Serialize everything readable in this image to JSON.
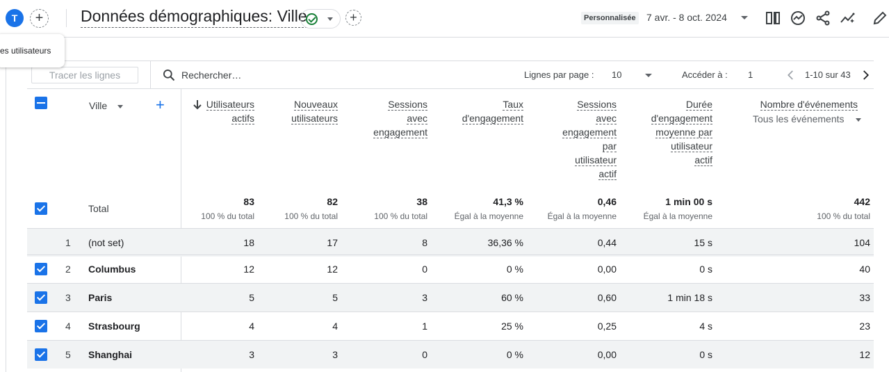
{
  "header": {
    "avatar_letter": "T",
    "title": "Données démographiques: Ville",
    "date_label": "Personnalisée",
    "date_range": "7 avr. - 8 oct. 2024"
  },
  "tooltip": {
    "text": "es utilisateurs"
  },
  "toolbar": {
    "plot_rows": "Tracer les lignes",
    "search_placeholder": "Rechercher…",
    "rows_per_page_label": "Lignes par page :",
    "rows_per_page_value": "10",
    "goto_label": "Accéder à :",
    "goto_value": "1",
    "pagination": "1-10 sur 43"
  },
  "table": {
    "dimension_header": "Ville",
    "columns": [
      {
        "key": "active_users",
        "lines": [
          "Utilisateurs",
          "actifs"
        ],
        "sorted": true
      },
      {
        "key": "new_users",
        "lines": [
          "Nouveaux",
          "utilisateurs"
        ]
      },
      {
        "key": "engaged_sessions",
        "lines": [
          "Sessions",
          "avec",
          "engagement"
        ]
      },
      {
        "key": "engagement_rate",
        "lines": [
          "Taux",
          "d'engagement"
        ]
      },
      {
        "key": "engaged_per_user",
        "lines": [
          "Sessions",
          "avec",
          "engagement",
          "par",
          "utilisateur",
          "actif"
        ]
      },
      {
        "key": "avg_engagement",
        "lines": [
          "Durée",
          "d'engagement",
          "moyenne par",
          "utilisateur",
          "actif"
        ]
      },
      {
        "key": "event_count",
        "lines": [
          "Nombre d'événements"
        ],
        "sub": "Tous les événements"
      }
    ],
    "total": {
      "label": "Total",
      "values": [
        "83",
        "82",
        "38",
        "41,3 %",
        "0,46",
        "1 min 00 s",
        "442"
      ],
      "subs": [
        "100 % du total",
        "100 % du total",
        "100 % du total",
        "Égal à la moyenne",
        "Égal à la moyenne",
        "Égal à la moyenne",
        "100 % du total"
      ]
    },
    "rows": [
      {
        "index": "1",
        "city": "(not set)",
        "checked": false,
        "values": [
          "18",
          "17",
          "8",
          "36,36 %",
          "0,44",
          "15 s",
          "104"
        ]
      },
      {
        "index": "2",
        "city": "Columbus",
        "checked": true,
        "values": [
          "12",
          "12",
          "0",
          "0 %",
          "0,00",
          "0 s",
          "40"
        ]
      },
      {
        "index": "3",
        "city": "Paris",
        "checked": true,
        "values": [
          "5",
          "5",
          "3",
          "60 %",
          "0,60",
          "1 min 18 s",
          "33"
        ]
      },
      {
        "index": "4",
        "city": "Strasbourg",
        "checked": true,
        "values": [
          "4",
          "4",
          "1",
          "25 %",
          "0,25",
          "4 s",
          "23"
        ]
      },
      {
        "index": "5",
        "city": "Shanghai",
        "checked": true,
        "values": [
          "3",
          "3",
          "0",
          "0 %",
          "0,00",
          "0 s",
          "12"
        ]
      }
    ]
  }
}
